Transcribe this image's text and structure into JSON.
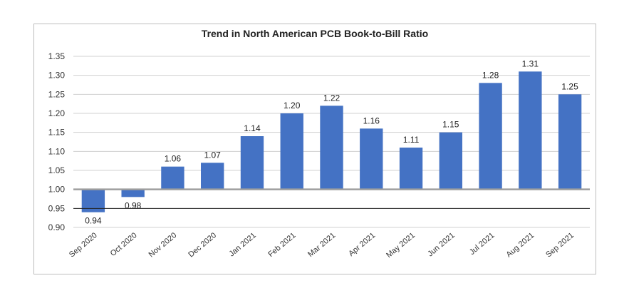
{
  "chart_data": {
    "type": "bar",
    "title": "Trend in North American PCB Book-to-Bill Ratio",
    "xlabel": "",
    "ylabel": "",
    "categories": [
      "Sep 2020",
      "Oct 2020",
      "Nov 2020",
      "Dec 2020",
      "Jan 2021",
      "Feb 2021",
      "Mar 2021",
      "Apr 2021",
      "May 2021",
      "Jun 2021",
      "Jul 2021",
      "Aug 2021",
      "Sep 2021"
    ],
    "values": [
      0.94,
      0.98,
      1.06,
      1.07,
      1.14,
      1.2,
      1.22,
      1.16,
      1.11,
      1.15,
      1.28,
      1.31,
      1.25
    ],
    "value_labels": [
      "0.94",
      "0.98",
      "1.06",
      "1.07",
      "1.14",
      "1.20",
      "1.22",
      "1.16",
      "1.11",
      "1.15",
      "1.28",
      "1.31",
      "1.25"
    ],
    "baseline": 1.0,
    "ylim": [
      0.9,
      1.35
    ],
    "yticks": [
      "0.90",
      "0.95",
      "1.00",
      "1.05",
      "1.10",
      "1.15",
      "1.20",
      "1.25",
      "1.30",
      "1.35"
    ],
    "grid": true,
    "legend": "none",
    "bar_color": "#4472c4"
  }
}
